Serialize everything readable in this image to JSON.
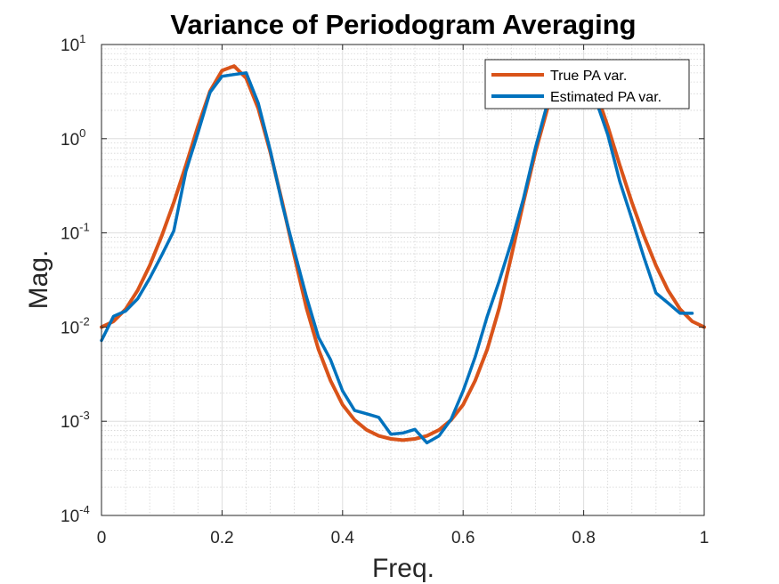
{
  "chart_data": {
    "type": "line",
    "title": "Variance of Periodogram Averaging",
    "xlabel": "Freq.",
    "ylabel": "Mag.",
    "xlim": [
      0,
      1
    ],
    "ylim": [
      0.0001,
      10
    ],
    "yscale": "log",
    "grid": true,
    "minor_grid": true,
    "legend_position": "top-right",
    "x_ticks": [
      {
        "value": 0,
        "label": "0"
      },
      {
        "value": 0.2,
        "label": "0.2"
      },
      {
        "value": 0.4,
        "label": "0.4"
      },
      {
        "value": 0.6,
        "label": "0.6"
      },
      {
        "value": 0.8,
        "label": "0.8"
      },
      {
        "value": 1,
        "label": "1"
      }
    ],
    "y_ticks": [
      {
        "value": 0.0001,
        "base": "10",
        "exp": "-4"
      },
      {
        "value": 0.001,
        "base": "10",
        "exp": "-3"
      },
      {
        "value": 0.01,
        "base": "10",
        "exp": "-2"
      },
      {
        "value": 0.1,
        "base": "10",
        "exp": "-1"
      },
      {
        "value": 1,
        "base": "10",
        "exp": "0"
      },
      {
        "value": 10,
        "base": "10",
        "exp": "1"
      }
    ],
    "series": [
      {
        "name": "True PA var.",
        "color": "#D95319",
        "x": [
          0,
          0.02,
          0.04,
          0.06,
          0.08,
          0.1,
          0.12,
          0.14,
          0.16,
          0.18,
          0.2,
          0.22,
          0.24,
          0.26,
          0.28,
          0.3,
          0.32,
          0.34,
          0.36,
          0.38,
          0.4,
          0.42,
          0.44,
          0.46,
          0.48,
          0.5,
          0.52,
          0.54,
          0.56,
          0.58,
          0.6,
          0.62,
          0.64,
          0.66,
          0.68,
          0.7,
          0.72,
          0.74,
          0.76,
          0.78,
          0.8,
          0.82,
          0.84,
          0.86,
          0.88,
          0.9,
          0.92,
          0.94,
          0.96,
          0.98,
          1
        ],
        "y": [
          0.01,
          0.0115,
          0.0155,
          0.0245,
          0.045,
          0.093,
          0.21,
          0.52,
          1.35,
          3.2,
          5.3,
          5.9,
          4.4,
          2.1,
          0.72,
          0.21,
          0.057,
          0.016,
          0.0058,
          0.0027,
          0.0015,
          0.00103,
          0.00081,
          0.0007,
          0.00065,
          0.00063,
          0.00065,
          0.0007,
          0.00081,
          0.00103,
          0.0015,
          0.0027,
          0.0058,
          0.016,
          0.057,
          0.21,
          0.72,
          2.1,
          4.4,
          5.9,
          5.3,
          3.2,
          1.35,
          0.52,
          0.21,
          0.093,
          0.045,
          0.0245,
          0.0155,
          0.0115,
          0.01
        ]
      },
      {
        "name": "Estimated PA var.",
        "color": "#0072BD",
        "x": [
          0,
          0.02,
          0.04,
          0.06,
          0.08,
          0.1,
          0.12,
          0.14,
          0.16,
          0.18,
          0.2,
          0.22,
          0.24,
          0.26,
          0.28,
          0.3,
          0.32,
          0.34,
          0.36,
          0.38,
          0.4,
          0.42,
          0.44,
          0.46,
          0.48,
          0.5,
          0.52,
          0.54,
          0.56,
          0.58,
          0.6,
          0.62,
          0.64,
          0.66,
          0.68,
          0.7,
          0.72,
          0.74,
          0.76,
          0.78,
          0.8,
          0.82,
          0.84,
          0.86,
          0.88,
          0.9,
          0.92,
          0.94,
          0.96,
          0.98
        ],
        "y": [
          0.0072,
          0.013,
          0.0148,
          0.02,
          0.033,
          0.058,
          0.105,
          0.45,
          1.15,
          3.1,
          4.6,
          4.8,
          5.0,
          2.4,
          0.75,
          0.2,
          0.064,
          0.021,
          0.0078,
          0.0045,
          0.0021,
          0.0013,
          0.0012,
          0.0011,
          0.00073,
          0.00075,
          0.00082,
          0.00059,
          0.0007,
          0.00105,
          0.0021,
          0.0048,
          0.013,
          0.031,
          0.08,
          0.23,
          0.8,
          2.4,
          5.0,
          6.0,
          4.5,
          2.6,
          1.1,
          0.35,
          0.14,
          0.055,
          0.023,
          0.018,
          0.014,
          0.014
        ]
      }
    ]
  }
}
